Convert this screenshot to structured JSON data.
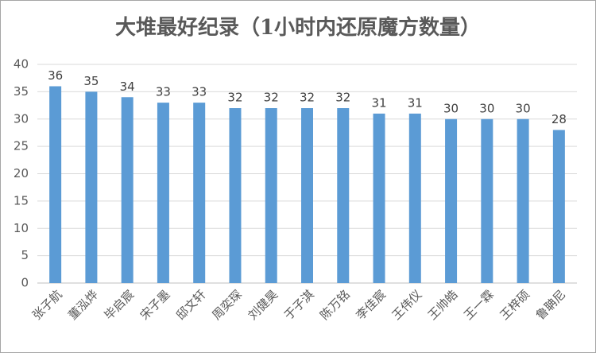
{
  "chart_data": {
    "type": "bar",
    "title": "大堆最好纪录（1小时内还原魔方数量）",
    "categories": [
      "张子航",
      "董泓烨",
      "毕启宸",
      "宋子墨",
      "邸文轩",
      "周奕琛",
      "刘健昊",
      "于子淇",
      "陈万铭",
      "李佳宸",
      "王伟仪",
      "王帅皓",
      "王一霖",
      "王梓硕",
      "鲁聃尼"
    ],
    "values": [
      36,
      35,
      34,
      33,
      33,
      32,
      32,
      32,
      32,
      31,
      31,
      30,
      30,
      30,
      28
    ],
    "color": "#5b9bd5",
    "ylim": [
      0,
      40
    ],
    "yticks": [
      0,
      5,
      10,
      15,
      20,
      25,
      30,
      35,
      40
    ],
    "grid": true
  }
}
